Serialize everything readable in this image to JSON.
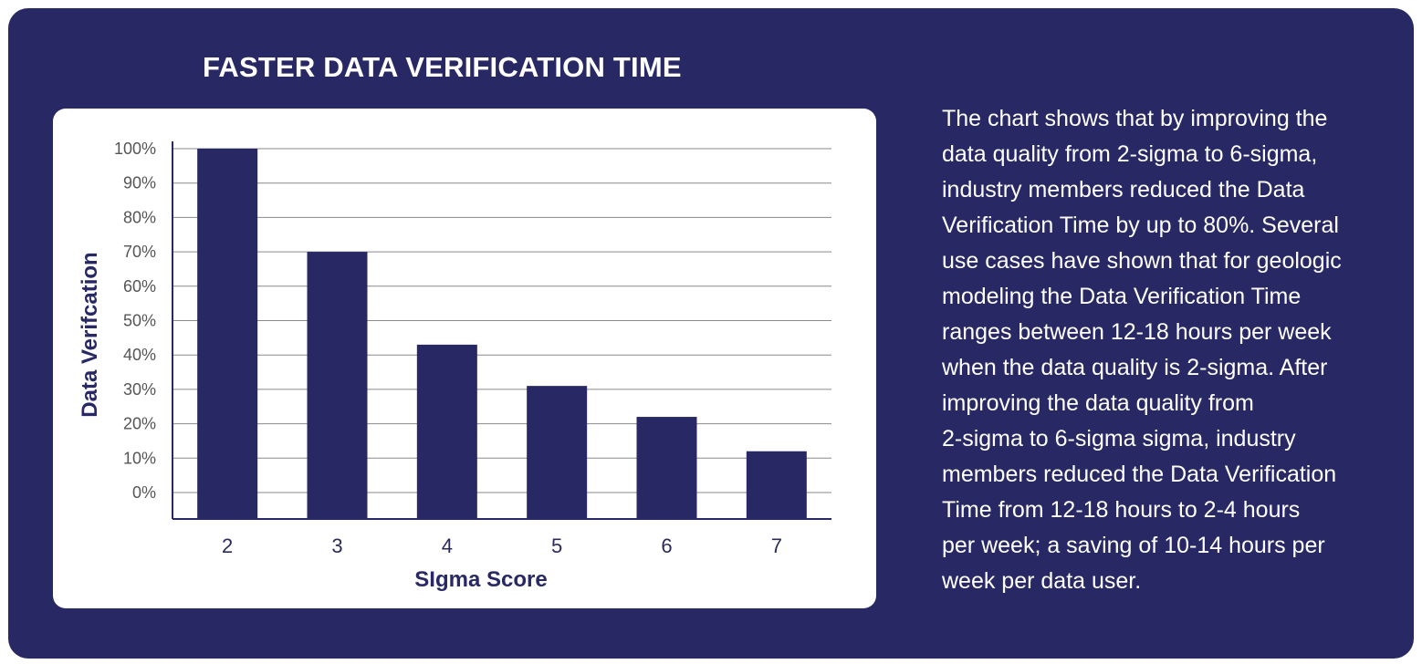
{
  "chart_data": {
    "type": "bar",
    "title": "FASTER DATA VERIFICATION TIME",
    "xlabel": "SIgma Score",
    "ylabel": "Data Verifcation",
    "categories": [
      "2",
      "3",
      "4",
      "5",
      "6",
      "7"
    ],
    "values": [
      100,
      70,
      43,
      31,
      22,
      12
    ],
    "y_ticks": [
      "0%",
      "10%",
      "20%",
      "30%",
      "40%",
      "50%",
      "60%",
      "70%",
      "80%",
      "90%",
      "100%"
    ],
    "ylim": [
      0,
      100
    ],
    "grid": true,
    "legend": "none",
    "colors": {
      "bar": "#282865",
      "grid": "#8a8a8a",
      "axis": "#282865"
    }
  },
  "description": "The chart shows that by improving the\ndata quality from 2-sigma to 6-sigma,\nindustry members reduced the Data\nVerification Time by up to 80%. Several\nuse cases have shown that for geologic\nmodeling the Data Verification Time\nranges between 12-18 hours per week\nwhen the data quality is 2-sigma. After\nimproving the data quality from\n2-sigma to 6-sigma sigma, industry\nmembers reduced the Data Verification\nTime from 12-18 hours to 2-4 hours\nper week; a saving of 10-14 hours per\nweek per data user.",
  "theme": {
    "panel_bg": "#282865",
    "text": "#ffffff"
  }
}
